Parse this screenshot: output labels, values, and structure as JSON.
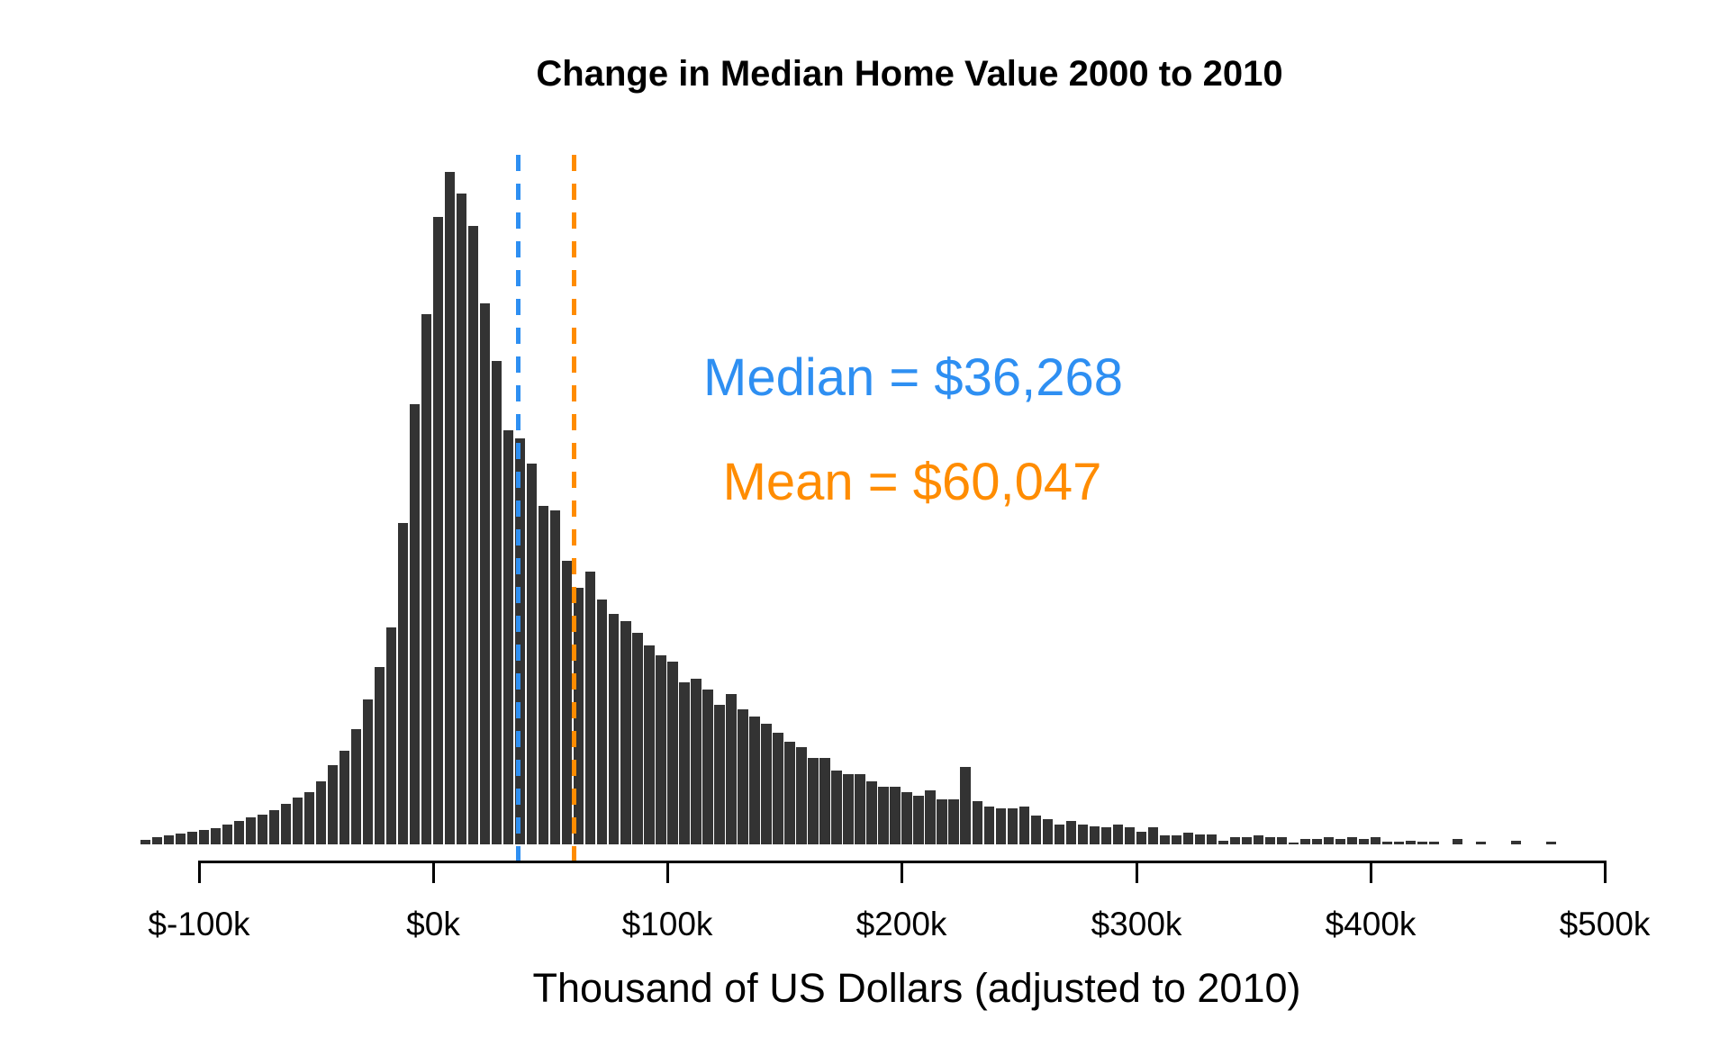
{
  "page": {
    "background": "#FFFFFF"
  },
  "chart": {
    "title": "Change in Median Home Value 2000 to 2010",
    "x_axis_title": "Thousand of US Dollars (adjusted to 2010)",
    "median_label": "Median = $36,268",
    "mean_label": "Mean = $60,047",
    "median_color": "#2E8FF2",
    "mean_color": "#FF8C00",
    "bar_color": "#333333",
    "axis_color": "#000000"
  },
  "chart_data": {
    "type": "bar",
    "subtype": "histogram",
    "title": "Change in Median Home Value 2000 to 2010",
    "xlabel": "Thousand of US Dollars (adjusted to 2010)",
    "ylabel": "",
    "grid": false,
    "legend": "none",
    "x_units": "thousand US dollars (adjusted to 2010)",
    "xlim_k": [
      -125,
      500
    ],
    "x_ticks": [
      {
        "k": -100,
        "label": "$-100k"
      },
      {
        "k": 0,
        "label": "$0k"
      },
      {
        "k": 100,
        "label": "$100k"
      },
      {
        "k": 200,
        "label": "$200k"
      },
      {
        "k": 300,
        "label": "$300k"
      },
      {
        "k": 400,
        "label": "$400k"
      },
      {
        "k": 500,
        "label": "$500k"
      }
    ],
    "bin_start_k": -125,
    "bin_width_k": 5,
    "heights_relative_note": "relative frequency per $5k bin, estimated from pixel heights (no y axis shown in source)",
    "heights": [
      5,
      8,
      10,
      12,
      14,
      16,
      18,
      22,
      26,
      30,
      33,
      38,
      45,
      52,
      58,
      70,
      88,
      104,
      128,
      161,
      197,
      241,
      357,
      489,
      589,
      697,
      747,
      723,
      687,
      601,
      537,
      460,
      451,
      423,
      376,
      371,
      315,
      285,
      303,
      272,
      256,
      248,
      235,
      221,
      210,
      203,
      180,
      184,
      172,
      155,
      167,
      150,
      142,
      134,
      124,
      114,
      108,
      96,
      96,
      82,
      78,
      78,
      70,
      64,
      64,
      58,
      54,
      60,
      50,
      50,
      86,
      48,
      42,
      40,
      40,
      42,
      32,
      28,
      22,
      26,
      22,
      20,
      19,
      22,
      19,
      14,
      19,
      10,
      10,
      13,
      11,
      11,
      4,
      8,
      8,
      10,
      8,
      8,
      2,
      6,
      6,
      8,
      6,
      8,
      6,
      8,
      3,
      3,
      4,
      3,
      3,
      0,
      6,
      0,
      3,
      0,
      0,
      4,
      0,
      0,
      3
    ],
    "median_k": 36.268,
    "mean_k": 60.047,
    "annotations": [
      {
        "text": "Median = $36,268",
        "color": "#2E8FF2"
      },
      {
        "text": "Mean = $60,047",
        "color": "#FF8C00"
      }
    ]
  }
}
